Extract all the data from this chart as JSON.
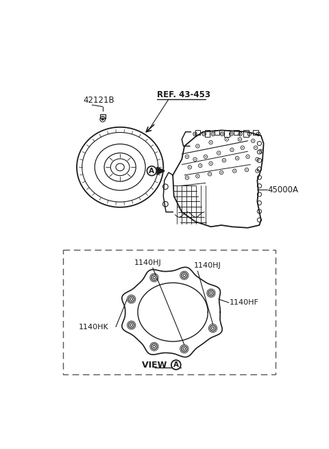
{
  "bg_color": "#ffffff",
  "label_42121B": "42121B",
  "label_ref": "REF. 43-453",
  "label_45000A": "45000A",
  "label_1140HJ_left": "1140HJ",
  "label_1140HJ_right": "1140HJ",
  "label_1140HF": "1140HF",
  "label_1140HK": "1140HK",
  "label_view": "VIEW",
  "line_color": "#1a1a1a",
  "text_color": "#1a1a1a",
  "dashed_box_color": "#555555",
  "fig_width": 4.8,
  "fig_height": 6.56,
  "dpi": 100
}
